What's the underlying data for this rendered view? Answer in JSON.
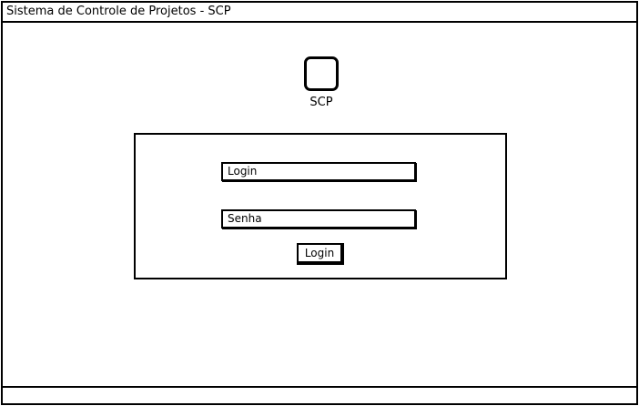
{
  "window": {
    "title": "Sistema de Controle de Projetos - SCP"
  },
  "logo": {
    "icon": "app-logo-icon",
    "label": "SCP"
  },
  "login_form": {
    "login_field": {
      "value": "",
      "placeholder": "Login"
    },
    "password_field": {
      "value": "",
      "placeholder": "Senha"
    },
    "submit_label": "Login"
  }
}
